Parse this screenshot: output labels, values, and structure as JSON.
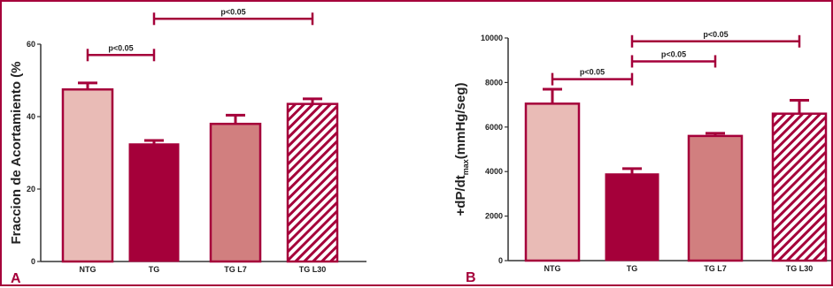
{
  "colors": {
    "border": "#a5003a",
    "axis": "#333333",
    "bar_ntg": "#e9bbb6",
    "bar_tg": "#a5003a",
    "bar_l7": "#d17f7f",
    "bar_l30": "#a5003a",
    "edge": "#a5003a",
    "bracket": "#a5003a"
  },
  "chart_data": [
    {
      "type": "bar",
      "panel_label": "A",
      "ylabel": "Fraccion de Acortamiento (%",
      "categories": [
        "NTG",
        "TG",
        "TG L7",
        "TG L30"
      ],
      "values": [
        47.5,
        32.5,
        38.0,
        43.5
      ],
      "errors": [
        1.8,
        0.9,
        2.4,
        1.4
      ],
      "fills": [
        "solid-light",
        "solid-dark",
        "solid-medium",
        "hatched"
      ],
      "ylim": [
        0,
        60
      ],
      "yticks": [
        0,
        20,
        40,
        60
      ],
      "grid": false,
      "significance": [
        {
          "from": 0,
          "to": 1,
          "level": 57,
          "label": "p<0.05"
        },
        {
          "from": 1,
          "to": 3,
          "level": 67,
          "label": "p<0.05"
        }
      ]
    },
    {
      "type": "bar",
      "panel_label": "B",
      "ylabel": "+dP/dt",
      "ylabel_sub": "max",
      "ylabel_suffix": "(mmHg/seg)",
      "categories": [
        "NTG",
        "TG",
        "TG L7",
        "TG L30"
      ],
      "values": [
        7050,
        3900,
        5600,
        6600
      ],
      "errors": [
        650,
        230,
        120,
        600
      ],
      "fills": [
        "solid-light",
        "solid-dark",
        "solid-medium",
        "hatched"
      ],
      "ylim": [
        0,
        10000
      ],
      "yticks": [
        0,
        2000,
        4000,
        6000,
        8000,
        10000
      ],
      "grid": false,
      "significance": [
        {
          "from": 0,
          "to": 1,
          "level": 8150,
          "label": "p<0.05"
        },
        {
          "from": 1,
          "to": 2,
          "level": 8950,
          "label": "p<0.05"
        },
        {
          "from": 1,
          "to": 3,
          "level": 9850,
          "label": "p<0.05"
        }
      ]
    }
  ]
}
